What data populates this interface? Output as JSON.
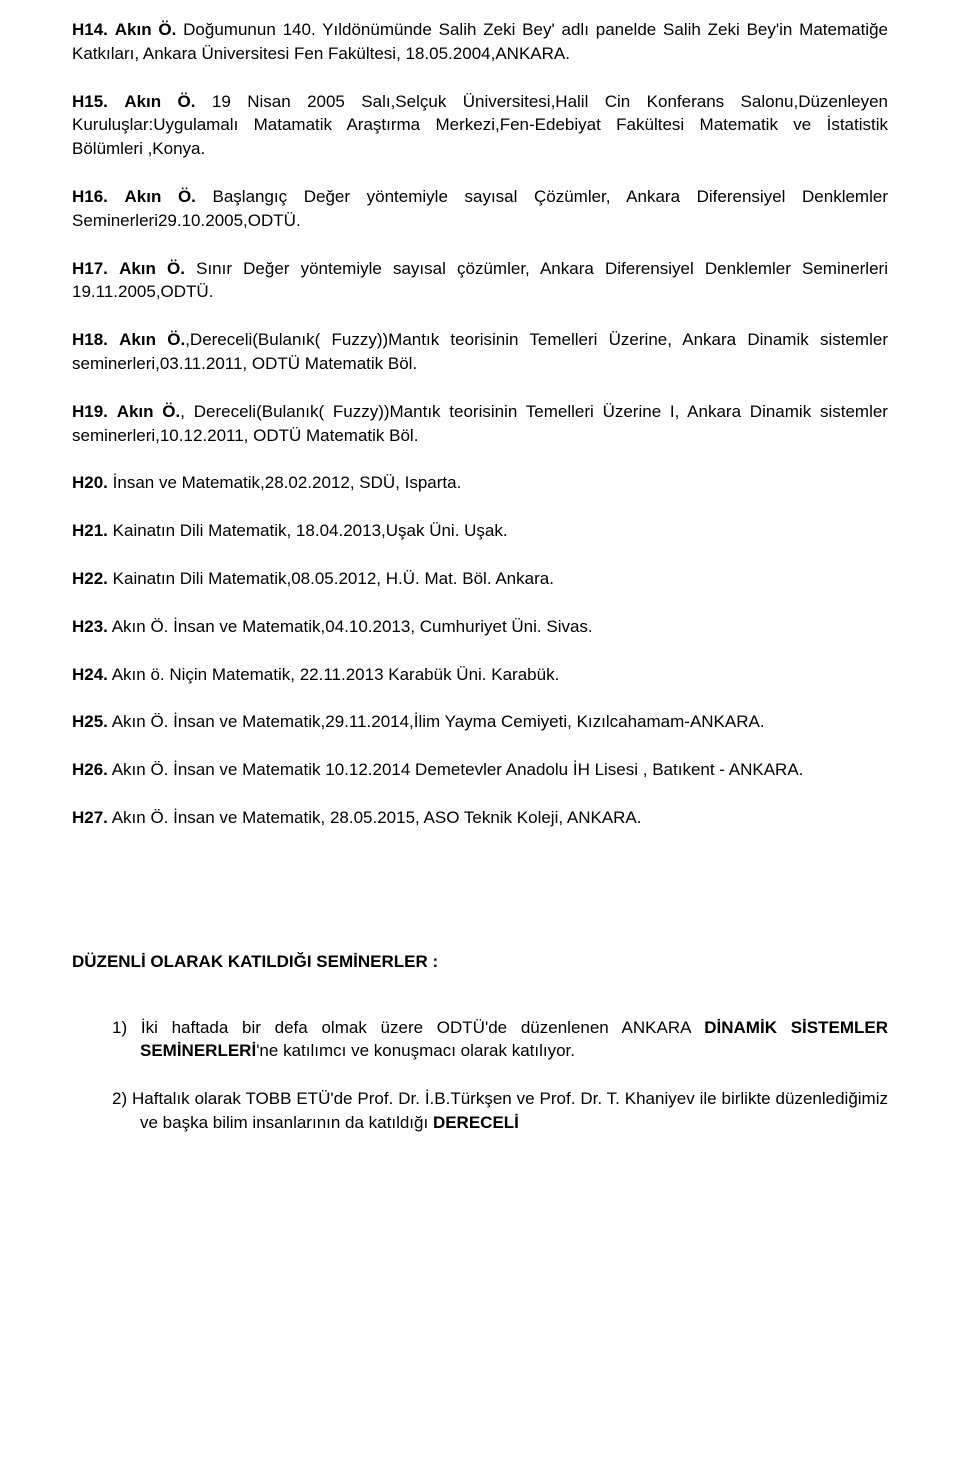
{
  "entries": [
    {
      "label": "H14.",
      "author": "Akın Ö.",
      "text": " Doğumunun 140. Yıldönümünde Salih Zeki Bey' adlı panelde Salih Zeki Bey'in Matematiğe Katkıları, Ankara Üniversitesi Fen Fakültesi, 18.05.2004,ANKARA."
    },
    {
      "label": "H15.",
      "author": "Akın Ö.",
      "text": " 19 Nisan 2005 Salı,Selçuk Üniversitesi,Halil Cin Konferans Salonu,Düzenleyen Kuruluşlar:Uygulamalı Matamatik Araştırma Merkezi,Fen-Edebiyat Fakültesi Matematik ve İstatistik Bölümleri ,Konya."
    },
    {
      "label": "H16.",
      "author": "Akın Ö.",
      "text": " Başlangıç Değer yöntemiyle sayısal Çözümler, Ankara Diferensiyel Denklemler Seminerleri29.10.2005,ODTÜ."
    },
    {
      "label": "H17.",
      "author": "Akın Ö.",
      "text": " Sınır Değer yöntemiyle sayısal çözümler, Ankara Diferensiyel Denklemler Seminerleri 19.11.2005,ODTÜ."
    },
    {
      "label": "H18.",
      "author": "Akın Ö.",
      "text": ",Dereceli(Bulanık( Fuzzy))Mantık teorisinin Temelleri Üzerine, Ankara Dinamik sistemler seminerleri,03.11.2011, ODTÜ Matematik Böl."
    },
    {
      "label": "H19.",
      "author": "Akın Ö.",
      "text": ", Dereceli(Bulanık( Fuzzy))Mantık teorisinin Temelleri Üzerine I, Ankara Dinamik sistemler seminerleri,10.12.2011, ODTÜ Matematik Böl."
    },
    {
      "label": "H20.",
      "author": "",
      "text": " İnsan ve Matematik,28.02.2012, SDÜ, Isparta."
    },
    {
      "label": "H21.",
      "author": "",
      "text": " Kainatın Dili Matematik, 18.04.2013,Uşak Üni. Uşak."
    },
    {
      "label": "H22.",
      "author": "",
      "text": " Kainatın Dili Matematik,08.05.2012, H.Ü. Mat. Böl. Ankara."
    },
    {
      "label": "H23.",
      "author": "",
      "text": " Akın Ö. İnsan ve Matematik,04.10.2013, Cumhuriyet Üni. Sivas."
    },
    {
      "label": "H24.",
      "author": "",
      "text": " Akın ö. Niçin Matematik,  22.11.2013 Karabük Üni. Karabük."
    },
    {
      "label": "H25.",
      "author": "",
      "text": " Akın Ö. İnsan ve Matematik,29.11.2014,İlim Yayma Cemiyeti, Kızılcahamam-ANKARA."
    },
    {
      "label": "H26.",
      "author": "",
      "text": " Akın Ö. İnsan ve Matematik 10.12.2014 Demetevler Anadolu İH Lisesi , Batıkent - ANKARA."
    },
    {
      "label": "H27.",
      "author": "",
      "text": " Akın Ö. İnsan ve Matematik, 28.05.2015, ASO Teknik Koleji, ANKARA."
    }
  ],
  "section_title": "DÜZENLİ OLARAK KATILDIĞI SEMİNERLER :",
  "list": [
    {
      "num": "1)",
      "pre": " İki haftada bir defa olmak üzere ODTÜ'de düzenlenen ANKARA ",
      "bold1": "DİNAMİK SİSTEMLER SEMİNERLERİ",
      "post": "'ne katılımcı ve konuşmacı olarak katılıyor."
    },
    {
      "num": "2)",
      "pre": " Haftalık olarak TOBB ETÜ'de Prof. Dr. İ.B.Türkşen ve Prof. Dr. T. Khaniyev ile birlikte düzenlediğimiz ve başka bilim insanlarının da katıldığı ",
      "bold1": "DERECELİ",
      "post": ""
    }
  ]
}
